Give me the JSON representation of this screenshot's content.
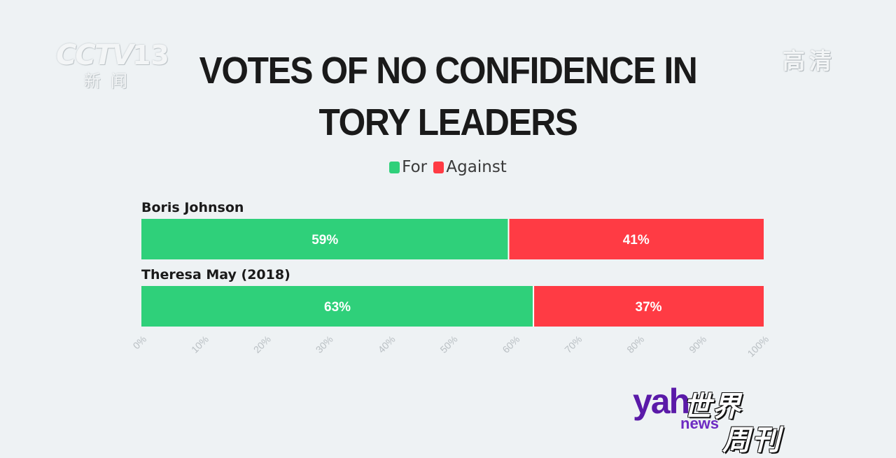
{
  "overlay": {
    "channel_logo": "CCTV",
    "channel_number": "13",
    "channel_sub": "新闻",
    "quality_badge": "高清",
    "watermark_yahoo": "yah",
    "watermark_news": "news",
    "watermark_zh_1": "世界",
    "watermark_zh_2": "周刊"
  },
  "chart_data": {
    "type": "bar",
    "orientation": "horizontal",
    "stacked": true,
    "title": "VOTES OF NO CONFIDENCE IN TORY LEADERS",
    "categories": [
      "Boris Johnson",
      "Theresa May (2018)"
    ],
    "series": [
      {
        "name": "For",
        "values": [
          59,
          63
        ],
        "color": "#2fd07a",
        "labels": [
          "59%",
          "63%"
        ]
      },
      {
        "name": "Against",
        "values": [
          41,
          37
        ],
        "color": "#ff3b44",
        "labels": [
          "41%",
          "37%"
        ]
      }
    ],
    "xlim": [
      0,
      100
    ],
    "x_ticks": [
      "0%",
      "10%",
      "20%",
      "30%",
      "40%",
      "50%",
      "60%",
      "70%",
      "80%",
      "90%",
      "100%"
    ],
    "legend_position": "top-center",
    "grid": false
  }
}
